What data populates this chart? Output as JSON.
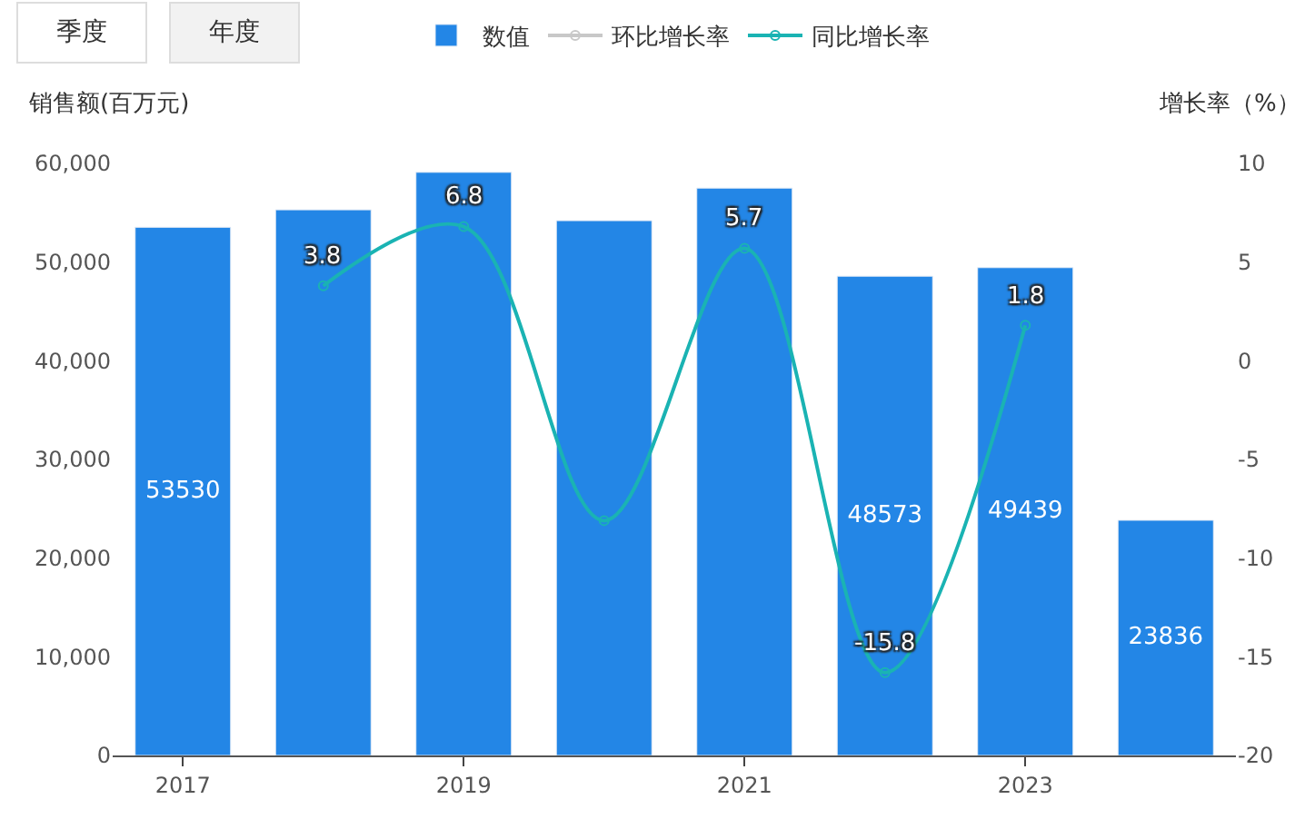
{
  "chart_data": {
    "type": "bar",
    "categories": [
      "2017",
      null,
      "2019",
      null,
      "2021",
      null,
      "2023",
      null
    ],
    "series": [
      {
        "name": "数值",
        "color": "#2386e6",
        "values": [
          53530,
          55300,
          59100,
          54200,
          57500,
          48573,
          49439,
          23836
        ],
        "value_labels": [
          "53530",
          null,
          null,
          null,
          null,
          "48573",
          "49439",
          "23836"
        ]
      },
      {
        "name": "环比增长率",
        "type": "line",
        "axis": "y2",
        "color": "#c8c8c8",
        "values": [
          null,
          null,
          null,
          null,
          null,
          null,
          null,
          null
        ]
      },
      {
        "name": "同比增长率",
        "type": "line",
        "axis": "y2",
        "color": "#1ab3b3",
        "values": [
          null,
          3.8,
          6.8,
          -8.1,
          5.7,
          -15.8,
          1.8,
          null
        ],
        "value_labels": [
          null,
          "3.8",
          "6.8",
          null,
          "5.7",
          "-15.8",
          "1.8",
          null
        ]
      }
    ],
    "ylabel": "销售额(百万元)",
    "y2label": "增长率（%）",
    "ylim": [
      0,
      60000
    ],
    "yticks": [
      {
        "value": 0,
        "label": "0"
      },
      {
        "value": 10000,
        "label": "10,000"
      },
      {
        "value": 20000,
        "label": "20,000"
      },
      {
        "value": 30000,
        "label": "30,000"
      },
      {
        "value": 40000,
        "label": "40,000"
      },
      {
        "value": 50000,
        "label": "50,000"
      },
      {
        "value": 60000,
        "label": "60,000"
      }
    ],
    "y2lim": [
      -20,
      10
    ],
    "y2ticks": [
      -20,
      -15,
      -10,
      -5,
      0,
      5,
      10
    ],
    "annotations": [
      "季度",
      "年度"
    ],
    "legend": "top",
    "marker": "circle"
  }
}
